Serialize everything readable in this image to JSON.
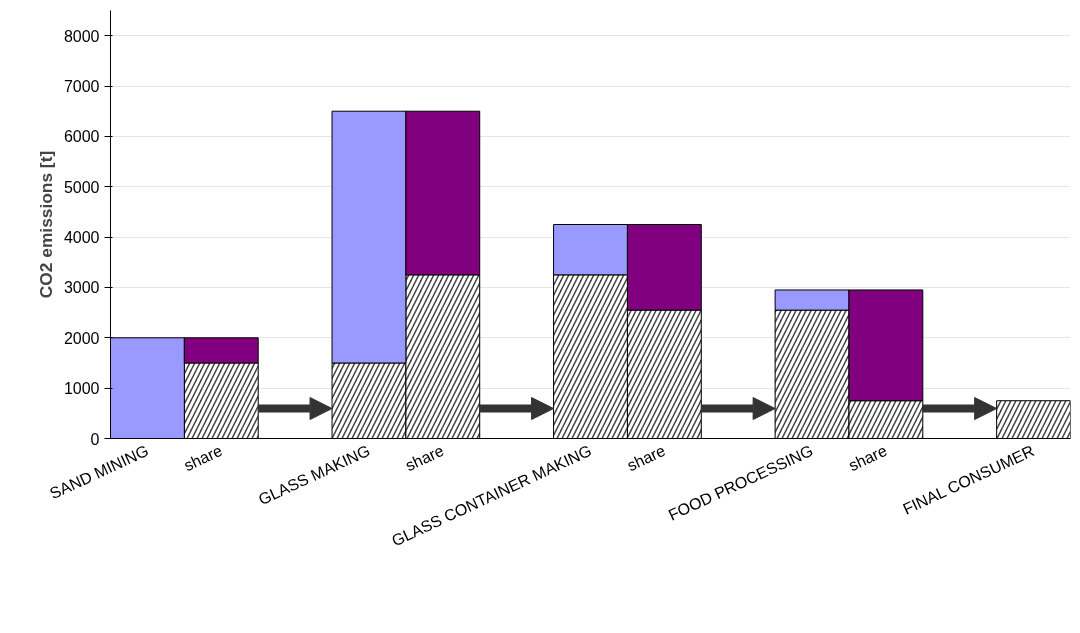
{
  "chart_data": {
    "type": "bar",
    "stacked": true,
    "ylabel": "CO2 emissions [t]",
    "categories": [
      "SAND MINING",
      "share",
      null,
      "GLASS MAKING",
      "share",
      null,
      "GLASS CONTAINER MAKING",
      "share",
      null,
      "FOOD PROCESSING",
      "share",
      null,
      "FINAL CONSUMER"
    ],
    "series": [
      {
        "color": "#404040",
        "values": [
          null,
          1500,
          null,
          1500,
          3250,
          null,
          3250,
          2550,
          null,
          2550,
          750,
          null,
          750
        ]
      },
      {
        "color": "#9999ff",
        "values": [
          2000,
          null,
          null,
          5000,
          null,
          null,
          1000,
          null,
          null,
          400,
          null,
          null,
          null
        ]
      },
      {
        "color": "#800080",
        "values": [
          null,
          500,
          null,
          null,
          3250,
          null,
          null,
          1700,
          null,
          null,
          2200,
          null,
          null
        ]
      }
    ],
    "ylim": [
      0,
      8500
    ],
    "yticks": [
      0,
      1000,
      2000,
      3000,
      4000,
      5000,
      6000,
      7000,
      8000
    ],
    "grid": "y"
  }
}
